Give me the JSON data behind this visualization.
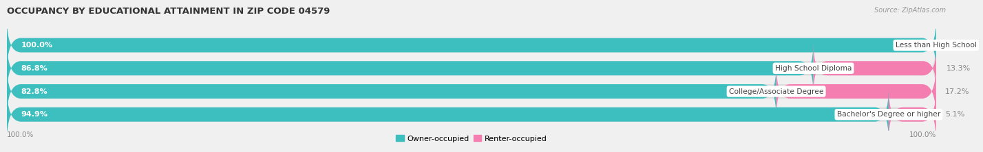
{
  "title": "OCCUPANCY BY EDUCATIONAL ATTAINMENT IN ZIP CODE 04579",
  "source": "Source: ZipAtlas.com",
  "categories": [
    "Less than High School",
    "High School Diploma",
    "College/Associate Degree",
    "Bachelor's Degree or higher"
  ],
  "owner_values": [
    100.0,
    86.8,
    82.8,
    94.9
  ],
  "renter_values": [
    0.0,
    13.3,
    17.2,
    5.1
  ],
  "owner_color": "#3DBFBF",
  "renter_color": "#F47EB0",
  "owner_label": "Owner-occupied",
  "renter_label": "Renter-occupied",
  "bar_height": 0.62,
  "background_color": "#f0f0f0",
  "bar_background": "#dcdcdc",
  "title_fontsize": 9.5,
  "label_fontsize": 8.0,
  "tick_fontsize": 7.5,
  "legend_fontsize": 8.0,
  "source_fontsize": 7.0,
  "left_axis_value": "100.0%",
  "right_axis_value": "100.0%"
}
